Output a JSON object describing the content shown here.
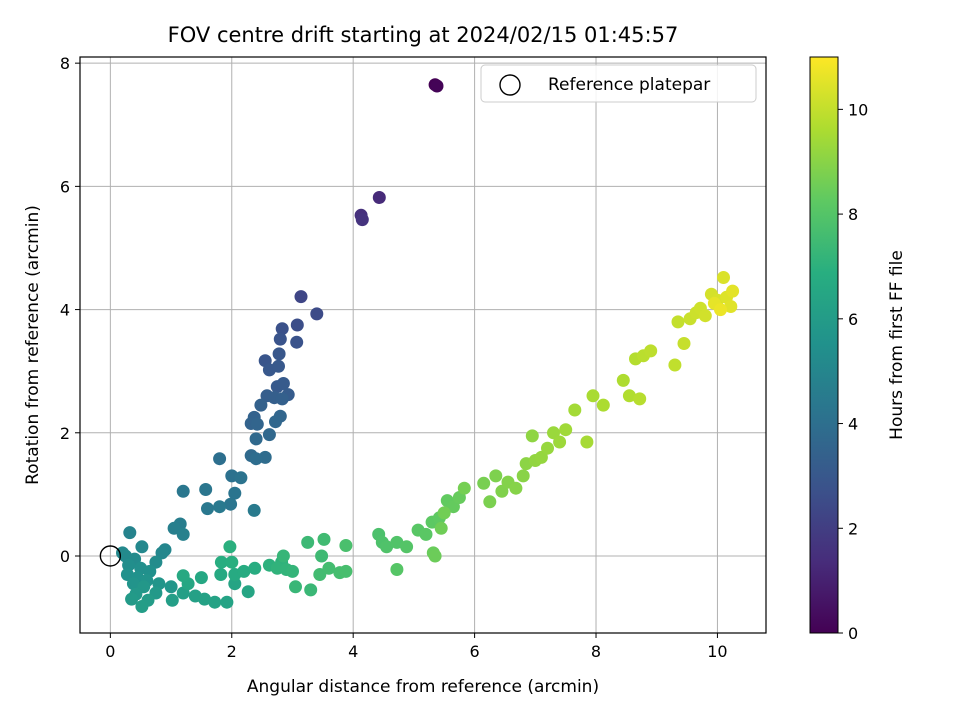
{
  "chart_data": {
    "type": "scatter",
    "title": "FOV centre drift starting at 2024/02/15 01:45:57",
    "xlabel": "Angular distance from reference (arcmin)",
    "ylabel": "Rotation from reference (arcmin)",
    "xlim": [
      -0.5,
      10.8
    ],
    "ylim": [
      -1.25,
      8.1
    ],
    "xticks": [
      0,
      2,
      4,
      6,
      8,
      10
    ],
    "yticks": [
      0,
      2,
      4,
      6,
      8
    ],
    "grid": true,
    "legend": {
      "placement": "top-right",
      "entries": [
        "Reference platepar"
      ]
    },
    "colorbar": {
      "label": "Hours from first FF file",
      "range": [
        0,
        11
      ],
      "ticks": [
        0,
        2,
        4,
        6,
        8,
        10
      ],
      "colormap": "viridis"
    },
    "reference_point": {
      "x": 0,
      "y": 0
    },
    "points": [
      [
        5.35,
        7.65,
        0.0
      ],
      [
        5.38,
        7.63,
        0.1
      ],
      [
        4.43,
        5.82,
        1.3
      ],
      [
        4.13,
        5.53,
        1.5
      ],
      [
        4.15,
        5.46,
        1.6
      ],
      [
        3.14,
        4.21,
        2.3
      ],
      [
        3.4,
        3.93,
        2.5
      ],
      [
        3.08,
        3.75,
        2.6
      ],
      [
        2.83,
        3.69,
        2.7
      ],
      [
        3.07,
        3.47,
        2.8
      ],
      [
        2.8,
        3.52,
        2.85
      ],
      [
        2.55,
        3.17,
        2.9
      ],
      [
        2.78,
        3.28,
        2.95
      ],
      [
        2.62,
        3.02,
        3.0
      ],
      [
        2.77,
        3.08,
        3.05
      ],
      [
        2.75,
        2.75,
        3.1
      ],
      [
        2.85,
        2.8,
        3.15
      ],
      [
        2.93,
        2.62,
        3.2
      ],
      [
        2.58,
        2.6,
        3.25
      ],
      [
        2.7,
        2.57,
        3.3
      ],
      [
        2.83,
        2.55,
        3.35
      ],
      [
        2.48,
        2.45,
        3.4
      ],
      [
        2.37,
        2.25,
        3.45
      ],
      [
        2.32,
        2.15,
        3.5
      ],
      [
        2.42,
        2.14,
        3.55
      ],
      [
        2.8,
        2.27,
        3.6
      ],
      [
        2.72,
        2.18,
        3.65
      ],
      [
        2.62,
        1.97,
        3.7
      ],
      [
        2.4,
        1.9,
        3.75
      ],
      [
        2.32,
        1.63,
        3.8
      ],
      [
        2.55,
        1.6,
        3.85
      ],
      [
        2.4,
        1.58,
        3.9
      ],
      [
        1.8,
        1.58,
        4.0
      ],
      [
        2.0,
        1.3,
        4.1
      ],
      [
        2.15,
        1.27,
        4.15
      ],
      [
        2.05,
        1.02,
        4.2
      ],
      [
        1.98,
        0.84,
        4.25
      ],
      [
        1.57,
        1.08,
        4.3
      ],
      [
        1.2,
        1.05,
        4.35
      ],
      [
        1.6,
        0.77,
        4.4
      ],
      [
        1.8,
        0.8,
        4.45
      ],
      [
        2.37,
        0.74,
        4.5
      ],
      [
        1.15,
        0.52,
        4.6
      ],
      [
        1.05,
        0.45,
        4.7
      ],
      [
        1.2,
        0.35,
        4.8
      ],
      [
        0.32,
        0.38,
        4.9
      ],
      [
        0.9,
        0.1,
        5.0
      ],
      [
        0.85,
        0.05,
        5.05
      ],
      [
        0.52,
        0.15,
        5.1
      ],
      [
        0.2,
        0.05,
        5.15
      ],
      [
        0.25,
        0.0,
        5.2
      ],
      [
        0.4,
        -0.05,
        5.25
      ],
      [
        0.75,
        -0.1,
        5.3
      ],
      [
        0.3,
        -0.15,
        5.35
      ],
      [
        0.5,
        -0.2,
        5.4
      ],
      [
        0.65,
        -0.25,
        5.45
      ],
      [
        0.28,
        -0.3,
        5.5
      ],
      [
        0.45,
        -0.35,
        5.55
      ],
      [
        0.6,
        -0.4,
        5.6
      ],
      [
        0.38,
        -0.45,
        5.65
      ],
      [
        0.8,
        -0.45,
        5.7
      ],
      [
        1.0,
        -0.5,
        5.75
      ],
      [
        0.55,
        -0.5,
        5.8
      ],
      [
        0.42,
        -0.62,
        5.85
      ],
      [
        0.75,
        -0.6,
        5.9
      ],
      [
        0.35,
        -0.7,
        5.95
      ],
      [
        0.62,
        -0.72,
        6.0
      ],
      [
        0.52,
        -0.82,
        6.05
      ],
      [
        1.02,
        -0.72,
        6.1
      ],
      [
        1.2,
        -0.6,
        6.15
      ],
      [
        1.4,
        -0.65,
        6.2
      ],
      [
        1.55,
        -0.7,
        6.25
      ],
      [
        1.72,
        -0.75,
        6.3
      ],
      [
        1.92,
        -0.75,
        6.35
      ],
      [
        2.05,
        -0.45,
        6.4
      ],
      [
        2.27,
        -0.58,
        6.45
      ],
      [
        1.28,
        -0.45,
        6.5
      ],
      [
        1.5,
        -0.35,
        6.55
      ],
      [
        1.2,
        -0.32,
        6.6
      ],
      [
        1.82,
        -0.3,
        6.65
      ],
      [
        2.05,
        -0.3,
        6.7
      ],
      [
        2.2,
        -0.25,
        6.75
      ],
      [
        2.38,
        -0.2,
        6.8
      ],
      [
        1.83,
        -0.1,
        6.85
      ],
      [
        2.0,
        -0.1,
        6.9
      ],
      [
        1.97,
        0.15,
        6.95
      ],
      [
        2.62,
        -0.15,
        7.0
      ],
      [
        2.82,
        -0.1,
        7.05
      ],
      [
        2.75,
        -0.2,
        7.1
      ],
      [
        2.9,
        -0.22,
        7.15
      ],
      [
        3.0,
        -0.25,
        7.2
      ],
      [
        2.85,
        0.0,
        7.25
      ],
      [
        3.05,
        -0.5,
        7.3
      ],
      [
        3.3,
        -0.55,
        7.35
      ],
      [
        3.25,
        0.22,
        7.4
      ],
      [
        3.48,
        0.0,
        7.45
      ],
      [
        3.52,
        0.27,
        7.5
      ],
      [
        3.45,
        -0.3,
        7.55
      ],
      [
        3.6,
        -0.2,
        7.6
      ],
      [
        3.78,
        -0.27,
        7.65
      ],
      [
        3.88,
        -0.25,
        7.7
      ],
      [
        3.88,
        0.17,
        7.75
      ],
      [
        4.42,
        0.35,
        7.8
      ],
      [
        4.48,
        0.22,
        7.85
      ],
      [
        4.55,
        0.15,
        7.9
      ],
      [
        4.72,
        0.22,
        7.95
      ],
      [
        4.88,
        0.15,
        8.0
      ],
      [
        4.72,
        -0.22,
        8.05
      ],
      [
        5.07,
        0.42,
        8.1
      ],
      [
        5.2,
        0.35,
        8.15
      ],
      [
        5.3,
        0.55,
        8.2
      ],
      [
        5.42,
        0.62,
        8.25
      ],
      [
        5.55,
        0.9,
        8.3
      ],
      [
        5.65,
        0.8,
        8.35
      ],
      [
        5.75,
        0.95,
        8.4
      ],
      [
        5.32,
        0.05,
        8.45
      ],
      [
        5.35,
        0.0,
        8.5
      ],
      [
        5.45,
        0.45,
        8.55
      ],
      [
        5.5,
        0.7,
        8.6
      ],
      [
        5.83,
        1.1,
        8.65
      ],
      [
        6.15,
        1.18,
        8.7
      ],
      [
        6.25,
        0.88,
        8.75
      ],
      [
        6.35,
        1.3,
        8.8
      ],
      [
        6.45,
        1.05,
        8.85
      ],
      [
        6.55,
        1.2,
        8.9
      ],
      [
        6.68,
        1.1,
        8.95
      ],
      [
        6.8,
        1.3,
        9.0
      ],
      [
        6.85,
        1.5,
        9.05
      ],
      [
        6.95,
        1.95,
        9.1
      ],
      [
        7.0,
        1.55,
        9.15
      ],
      [
        7.1,
        1.6,
        9.2
      ],
      [
        7.2,
        1.75,
        9.25
      ],
      [
        7.3,
        2.0,
        9.3
      ],
      [
        7.4,
        1.85,
        9.35
      ],
      [
        7.5,
        2.05,
        9.4
      ],
      [
        7.65,
        2.37,
        9.45
      ],
      [
        7.85,
        1.85,
        9.5
      ],
      [
        7.95,
        2.6,
        9.55
      ],
      [
        8.12,
        2.45,
        9.6
      ],
      [
        8.45,
        2.85,
        9.65
      ],
      [
        8.55,
        2.6,
        9.7
      ],
      [
        8.65,
        3.2,
        9.75
      ],
      [
        8.72,
        2.55,
        9.8
      ],
      [
        8.78,
        3.25,
        9.85
      ],
      [
        8.9,
        3.33,
        9.9
      ],
      [
        9.3,
        3.1,
        9.95
      ],
      [
        9.35,
        3.8,
        10.0
      ],
      [
        9.45,
        3.45,
        10.05
      ],
      [
        9.55,
        3.85,
        10.1
      ],
      [
        9.65,
        3.95,
        10.15
      ],
      [
        9.72,
        4.02,
        10.2
      ],
      [
        9.8,
        3.9,
        10.25
      ],
      [
        9.9,
        4.25,
        10.3
      ],
      [
        10.0,
        4.15,
        10.35
      ],
      [
        10.1,
        4.52,
        10.4
      ],
      [
        10.15,
        4.2,
        10.45
      ],
      [
        10.22,
        4.05,
        10.5
      ],
      [
        10.25,
        4.3,
        10.55
      ],
      [
        9.95,
        4.1,
        10.6
      ],
      [
        10.05,
        4.0,
        10.7
      ]
    ]
  }
}
